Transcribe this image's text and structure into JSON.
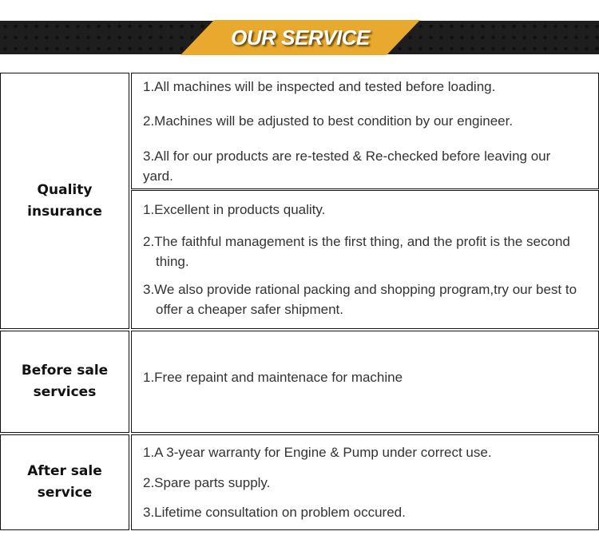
{
  "banner": {
    "title": "OUR SERVICE"
  },
  "sections": [
    {
      "label": "Quality\ninsurance",
      "groups": [
        [
          "1.All machines will be inspected and tested before loading.",
          "2.Machines will be adjusted to best condition by our engineer.",
          "3.All for our products are re-tested & Re-checked before leaving our yard."
        ],
        [
          "1.Excellent in products quality.",
          "2.The faithful management is the first thing, and the profit is the second thing.",
          "3.We also provide rational packing and shopping program,try our best to offer a cheaper safer shipment."
        ]
      ]
    },
    {
      "label": "Before sale\nservices",
      "groups": [
        [
          "1.Free repaint and maintenace for machine"
        ]
      ]
    },
    {
      "label": "After sale\nservice",
      "groups": [
        [
          "1.A 3-year warranty for Engine & Pump under correct use.",
          "2.Spare parts supply.",
          "3.Lifetime consultation on problem occured."
        ]
      ]
    }
  ]
}
